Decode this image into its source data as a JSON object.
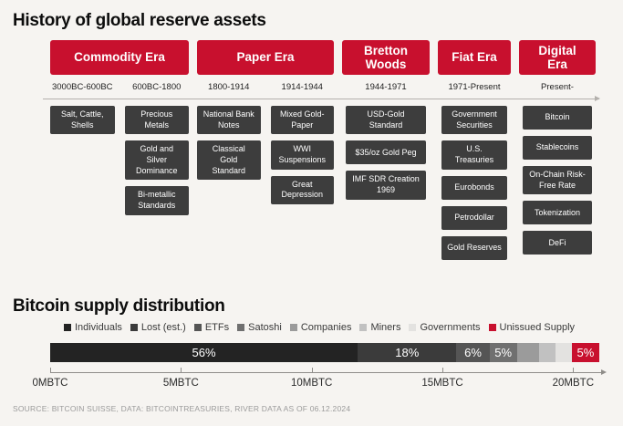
{
  "colors": {
    "accent_red": "#c8102e",
    "box_dark": "#3d3d3d",
    "background": "#f6f4f1"
  },
  "timeline": {
    "title": "History of global reserve assets",
    "eras": [
      {
        "label": "Commodity Era",
        "columns": [
          {
            "period": "3000BC-600BC",
            "items": [
              "Salt, Cattle, Shells"
            ]
          },
          {
            "period": "600BC-1800",
            "items": [
              "Precious Metals",
              "Gold and Silver Dominance",
              "Bi-metallic Standards"
            ]
          }
        ]
      },
      {
        "label": "Paper Era",
        "columns": [
          {
            "period": "1800-1914",
            "items": [
              "National Bank Notes",
              "Classical Gold Standard"
            ]
          },
          {
            "period": "1914-1944",
            "items": [
              "Mixed Gold-Paper",
              "WWI Suspensions",
              "Great Depression"
            ]
          }
        ]
      },
      {
        "label": "Bretton Woods",
        "columns": [
          {
            "period": "1944-1971",
            "items": [
              "USD-Gold Standard",
              "$35/oz Gold Peg",
              "IMF SDR Creation 1969"
            ]
          }
        ]
      },
      {
        "label": "Fiat Era",
        "columns": [
          {
            "period": "1971-Present",
            "items": [
              "Government Securities",
              "U.S. Treasuries",
              "Eurobonds",
              "Petrodollar",
              "Gold Reserves"
            ]
          }
        ]
      },
      {
        "label": "Digital Era",
        "columns": [
          {
            "period": "Present-",
            "items": [
              "Bitcoin",
              "Stablecoins",
              "On-Chain Risk-Free Rate",
              "Tokenization",
              "DeFi"
            ]
          }
        ]
      }
    ]
  },
  "chart_data": {
    "type": "bar",
    "orientation": "horizontal-stacked",
    "title": "Bitcoin supply distribution",
    "unit": "MBTC",
    "series": [
      {
        "name": "Individuals",
        "percent": 56,
        "label": "56%",
        "color": "#232323"
      },
      {
        "name": "Lost (est.)",
        "percent": 18,
        "label": "18%",
        "color": "#3b3b3b"
      },
      {
        "name": "ETFs",
        "percent": 6,
        "label": "6%",
        "color": "#555555"
      },
      {
        "name": "Satoshi",
        "percent": 5,
        "label": "5%",
        "color": "#707070"
      },
      {
        "name": "Companies",
        "percent": 4,
        "label": "",
        "color": "#9b9b9b"
      },
      {
        "name": "Miners",
        "percent": 3,
        "label": "",
        "color": "#c1c1c1"
      },
      {
        "name": "Governments",
        "percent": 3,
        "label": "",
        "color": "#e3e2e0"
      },
      {
        "name": "Unissued Supply",
        "percent": 5,
        "label": "5%",
        "color": "#c8102e"
      }
    ],
    "axis": {
      "min": 0,
      "max": 21,
      "ticks": [
        0,
        5,
        10,
        15,
        20
      ],
      "tick_labels": [
        "0MBTC",
        "5MBTC",
        "10MBTC",
        "15MBTC",
        "20MBTC"
      ]
    },
    "legend_position": "top",
    "source": "SOURCE: BITCOIN SUISSE, DATA: BITCOINTREASURIES, RIVER DATA AS OF 06.12.2024"
  }
}
